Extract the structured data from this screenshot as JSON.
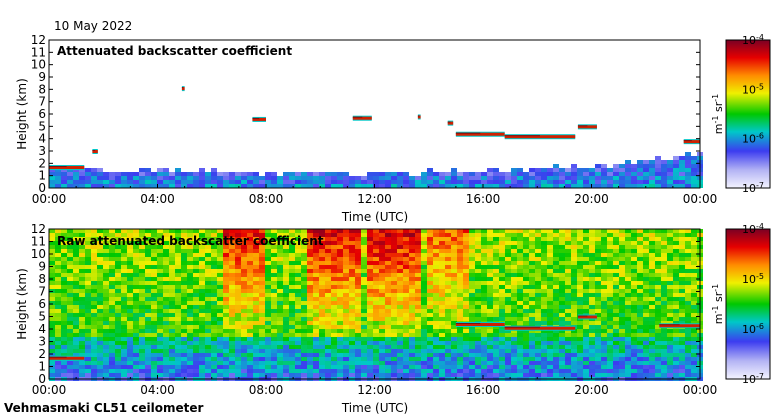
{
  "date": "10 May 2022",
  "footer": "Vehmasmaki CL51 ceilometer",
  "colors": {
    "ramp": [
      "#f4f4ff",
      "#b4b4f4",
      "#3c3cf0",
      "#00c8c8",
      "#00c800",
      "#f0f000",
      "#ff8c00",
      "#e60000",
      "#7a0024"
    ],
    "cloud_low": "#d02000",
    "cloud_high": "#7a1010"
  },
  "chart_data": [
    {
      "type": "heatmap",
      "title": "Attenuated backscatter coefficient",
      "xlabel": "Time (UTC)",
      "ylabel": "Height (km)",
      "xlim": [
        0,
        24
      ],
      "ylim": [
        0,
        12
      ],
      "x_ticks": [
        "00:00",
        "04:00",
        "08:00",
        "12:00",
        "16:00",
        "20:00",
        "00:00"
      ],
      "y_ticks": [
        "0",
        "1",
        "2",
        "3",
        "4",
        "5",
        "6",
        "7",
        "8",
        "9",
        "10",
        "11",
        "12"
      ],
      "colorbar": {
        "label_base": "m",
        "label_exp1": "-1",
        "label_mid": " sr",
        "label_exp2": "-1",
        "ticks": [
          {
            "base": "10",
            "exp": "-7"
          },
          {
            "base": "10",
            "exp": "-6"
          },
          {
            "base": "10",
            "exp": "-5"
          },
          {
            "base": "10",
            "exp": "-4"
          }
        ],
        "range_log10": [
          -7,
          -4
        ]
      },
      "layers": {
        "boundary_layer_top_km": [
          [
            0,
            1.5
          ],
          [
            2,
            1.3
          ],
          [
            4,
            1.2
          ],
          [
            6,
            1.2
          ],
          [
            8,
            1.0
          ],
          [
            10,
            1.0
          ],
          [
            12,
            1.0
          ],
          [
            14,
            1.1
          ],
          [
            16,
            1.2
          ],
          [
            18,
            1.3
          ],
          [
            20,
            1.6
          ],
          [
            22,
            2.1
          ],
          [
            24,
            2.6
          ]
        ],
        "cloud_segments": [
          {
            "x": [
              0.0,
              1.3
            ],
            "height": 1.7
          },
          {
            "x": [
              1.6,
              1.8
            ],
            "height": 3.0
          },
          {
            "x": [
              4.9,
              5.0
            ],
            "height": 8.1
          },
          {
            "x": [
              7.5,
              8.0
            ],
            "height": 5.6
          },
          {
            "x": [
              11.2,
              11.9
            ],
            "height": 5.7
          },
          {
            "x": [
              13.6,
              13.7
            ],
            "height": 5.8
          },
          {
            "x": [
              14.7,
              14.9
            ],
            "height": 5.3
          },
          {
            "x": [
              15.0,
              16.8
            ],
            "height": 4.4
          },
          {
            "x": [
              16.8,
              19.4
            ],
            "height": 4.2
          },
          {
            "x": [
              19.5,
              20.2
            ],
            "height": 5.0
          },
          {
            "x": [
              23.4,
              24.0
            ],
            "height": 3.8
          }
        ]
      }
    },
    {
      "type": "heatmap",
      "title": "Raw attenuated backscatter coefficient",
      "xlabel": "Time (UTC)",
      "ylabel": "Height (km)",
      "xlim": [
        0,
        24
      ],
      "ylim": [
        0,
        12
      ],
      "x_ticks": [
        "00:00",
        "04:00",
        "08:00",
        "12:00",
        "16:00",
        "20:00",
        "00:00"
      ],
      "y_ticks": [
        "0",
        "1",
        "2",
        "3",
        "4",
        "5",
        "6",
        "7",
        "8",
        "9",
        "10",
        "11",
        "12"
      ],
      "colorbar": {
        "label_base": "m",
        "label_exp1": "-1",
        "label_mid": " sr",
        "label_exp2": "-1",
        "ticks": [
          {
            "base": "10",
            "exp": "-7"
          },
          {
            "base": "10",
            "exp": "-6"
          },
          {
            "base": "10",
            "exp": "-5"
          },
          {
            "base": "10",
            "exp": "-4"
          }
        ],
        "range_log10": [
          -7,
          -4
        ]
      },
      "layers": {
        "noise_bands": [
          {
            "x": [
              6.5,
              8.0
            ],
            "level": 0.85
          },
          {
            "x": [
              9.5,
              11.5
            ],
            "level": 0.9
          },
          {
            "x": [
              11.8,
              13.8
            ],
            "level": 0.95
          },
          {
            "x": [
              14.0,
              15.5
            ],
            "level": 0.6
          }
        ],
        "cloud_segments": [
          {
            "x": [
              0.0,
              1.3
            ],
            "height": 1.7
          },
          {
            "x": [
              15.0,
              16.8
            ],
            "height": 4.4
          },
          {
            "x": [
              16.8,
              19.4
            ],
            "height": 4.1
          },
          {
            "x": [
              19.5,
              20.2
            ],
            "height": 5.0
          },
          {
            "x": [
              22.5,
              24.0
            ],
            "height": 4.3
          }
        ]
      }
    }
  ]
}
